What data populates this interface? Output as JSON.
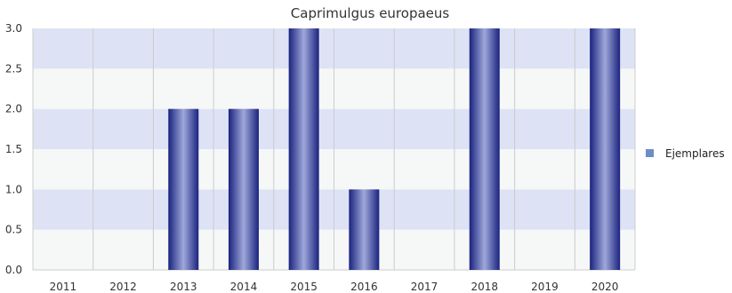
{
  "chart_data": {
    "type": "bar",
    "title": "Caprimulgus europaeus",
    "xlabel": "",
    "ylabel": "",
    "categories": [
      "2011",
      "2012",
      "2013",
      "2014",
      "2015",
      "2016",
      "2017",
      "2018",
      "2019",
      "2020"
    ],
    "series": [
      {
        "name": "Ejemplares",
        "values": [
          0,
          0,
          2,
          2,
          3,
          1,
          0,
          3,
          0,
          3
        ]
      }
    ],
    "ylim": [
      0,
      3
    ],
    "yticks": [
      "0.0",
      "0.5",
      "1.0",
      "1.5",
      "2.0",
      "2.5",
      "3.0"
    ],
    "grid": true,
    "legend": "right",
    "colors": {
      "bar_dark": "#1a237e",
      "bar_light": "#9fa8da",
      "band_dark": "#dde3f5",
      "band_light": "#f6f7f7",
      "gridline": "#cccccc",
      "legend_swatch": "#6b8fc4"
    }
  }
}
